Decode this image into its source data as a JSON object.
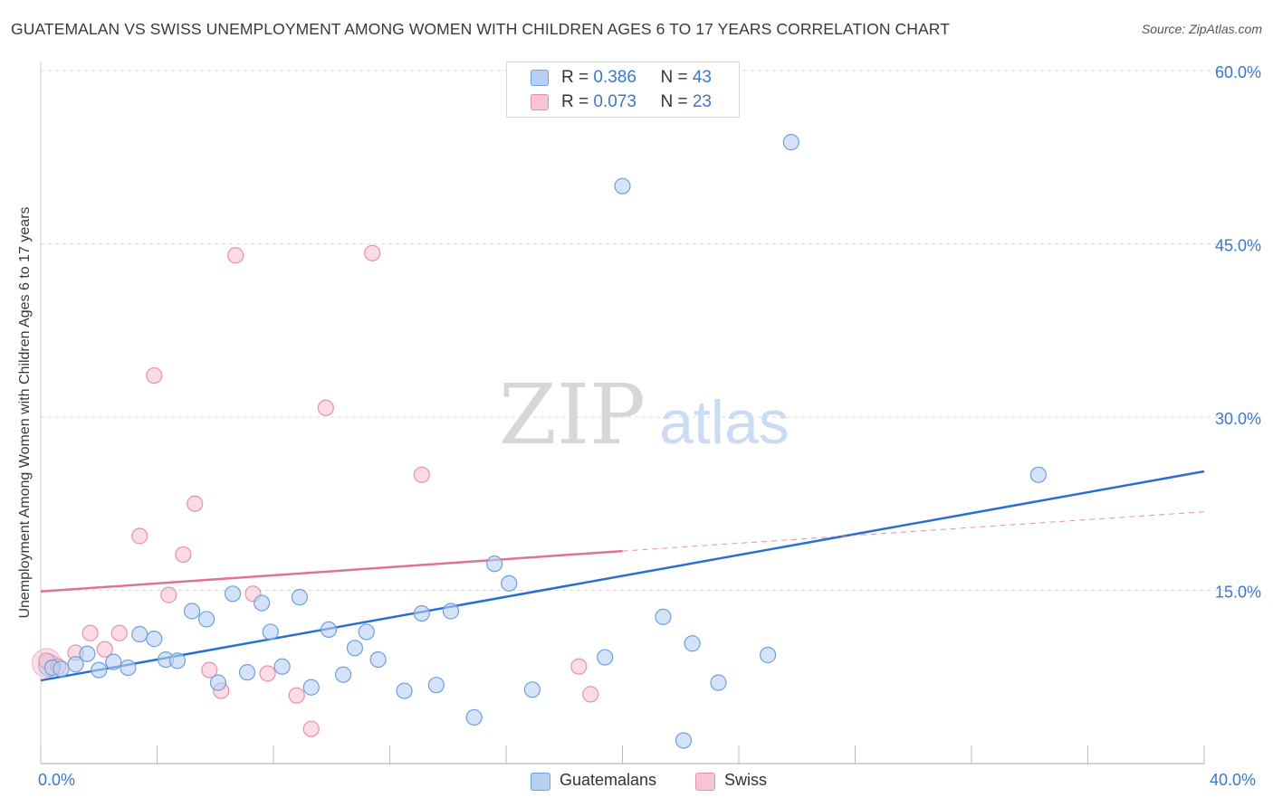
{
  "title": "GUATEMALAN VS SWISS UNEMPLOYMENT AMONG WOMEN WITH CHILDREN AGES 6 TO 17 YEARS CORRELATION CHART",
  "source": "Source: ZipAtlas.com",
  "watermark": {
    "zip": "ZIP",
    "atlas": "atlas"
  },
  "colors": {
    "blue_fill": "#b7d0f2",
    "blue_stroke": "#6f9fdc",
    "blue_line": "#2a6fd0",
    "pink_fill": "#f8c3d3",
    "pink_stroke": "#ea8fab",
    "pink_line": "#e0719a",
    "axis_label": "#3b78c9",
    "grid": "#d9d9d9"
  },
  "legend_top": [
    {
      "series": "Guatemalans",
      "r_label": "R = ",
      "r_value": "0.386",
      "n_label": "N = ",
      "n_value": "43"
    },
    {
      "series": "Swiss",
      "r_label": "R = ",
      "r_value": "0.073",
      "n_label": "N = ",
      "n_value": "23"
    }
  ],
  "chart_data": {
    "type": "scatter",
    "title": "GUATEMALAN VS SWISS UNEMPLOYMENT AMONG WOMEN WITH CHILDREN AGES 6 TO 17 YEARS CORRELATION CHART",
    "xlabel": "",
    "ylabel": "Unemployment Among Women with Children Ages 6 to 17 years",
    "xlim": [
      0,
      40
    ],
    "ylim": [
      0,
      60
    ],
    "x_tick_labels": [
      "0.0%",
      "40.0%"
    ],
    "y_ticks": [
      15,
      30,
      45,
      60
    ],
    "y_tick_labels": [
      "15.0%",
      "30.0%",
      "45.0%",
      "60.0%"
    ],
    "grid": true,
    "legend_position": "bottom-center",
    "series": [
      {
        "name": "Guatemalans",
        "color": "#b7d0f2",
        "points": [
          [
            0.4,
            8.3
          ],
          [
            0.7,
            8.2
          ],
          [
            1.2,
            8.6
          ],
          [
            1.6,
            9.5
          ],
          [
            2.0,
            8.1
          ],
          [
            2.5,
            8.8
          ],
          [
            3.0,
            8.3
          ],
          [
            3.4,
            11.2
          ],
          [
            3.9,
            10.8
          ],
          [
            4.3,
            9.0
          ],
          [
            4.7,
            8.9
          ],
          [
            5.2,
            13.2
          ],
          [
            5.7,
            12.5
          ],
          [
            6.1,
            7.0
          ],
          [
            6.6,
            14.7
          ],
          [
            7.1,
            7.9
          ],
          [
            7.6,
            13.9
          ],
          [
            7.9,
            11.4
          ],
          [
            8.3,
            8.4
          ],
          [
            8.9,
            14.4
          ],
          [
            9.3,
            6.6
          ],
          [
            9.9,
            11.6
          ],
          [
            10.4,
            7.7
          ],
          [
            10.8,
            10.0
          ],
          [
            11.2,
            11.4
          ],
          [
            11.6,
            9.0
          ],
          [
            12.5,
            6.3
          ],
          [
            13.1,
            13.0
          ],
          [
            13.6,
            6.8
          ],
          [
            14.1,
            13.2
          ],
          [
            14.9,
            4.0
          ],
          [
            15.6,
            17.3
          ],
          [
            16.1,
            15.6
          ],
          [
            16.9,
            6.4
          ],
          [
            19.4,
            9.2
          ],
          [
            20.0,
            50.0
          ],
          [
            21.4,
            12.7
          ],
          [
            22.1,
            2.0
          ],
          [
            22.4,
            10.4
          ],
          [
            23.3,
            7.0
          ],
          [
            25.0,
            9.4
          ],
          [
            25.8,
            53.8
          ],
          [
            34.3,
            25.0
          ]
        ],
        "trendline": {
          "x": [
            0,
            40
          ],
          "y": [
            7.2,
            25.3
          ]
        }
      },
      {
        "name": "Swiss",
        "color": "#f8c3d3",
        "points": [
          [
            0.2,
            8.9
          ],
          [
            0.6,
            8.4
          ],
          [
            1.2,
            9.6
          ],
          [
            1.7,
            11.3
          ],
          [
            2.2,
            9.9
          ],
          [
            2.7,
            11.3
          ],
          [
            3.4,
            19.7
          ],
          [
            3.9,
            33.6
          ],
          [
            4.4,
            14.6
          ],
          [
            4.9,
            18.1
          ],
          [
            5.3,
            22.5
          ],
          [
            5.8,
            8.1
          ],
          [
            6.2,
            6.3
          ],
          [
            6.7,
            44.0
          ],
          [
            7.3,
            14.7
          ],
          [
            7.8,
            7.8
          ],
          [
            8.8,
            5.9
          ],
          [
            9.3,
            3.0
          ],
          [
            9.8,
            30.8
          ],
          [
            11.4,
            44.2
          ],
          [
            13.1,
            25.0
          ],
          [
            18.5,
            8.4
          ],
          [
            18.9,
            6.0
          ]
        ],
        "trendline": {
          "x": [
            0,
            20
          ],
          "y": [
            14.9,
            18.4
          ],
          "dashed_extension": {
            "x": [
              20,
              40
            ],
            "y": [
              18.4,
              21.8
            ]
          }
        }
      }
    ]
  }
}
